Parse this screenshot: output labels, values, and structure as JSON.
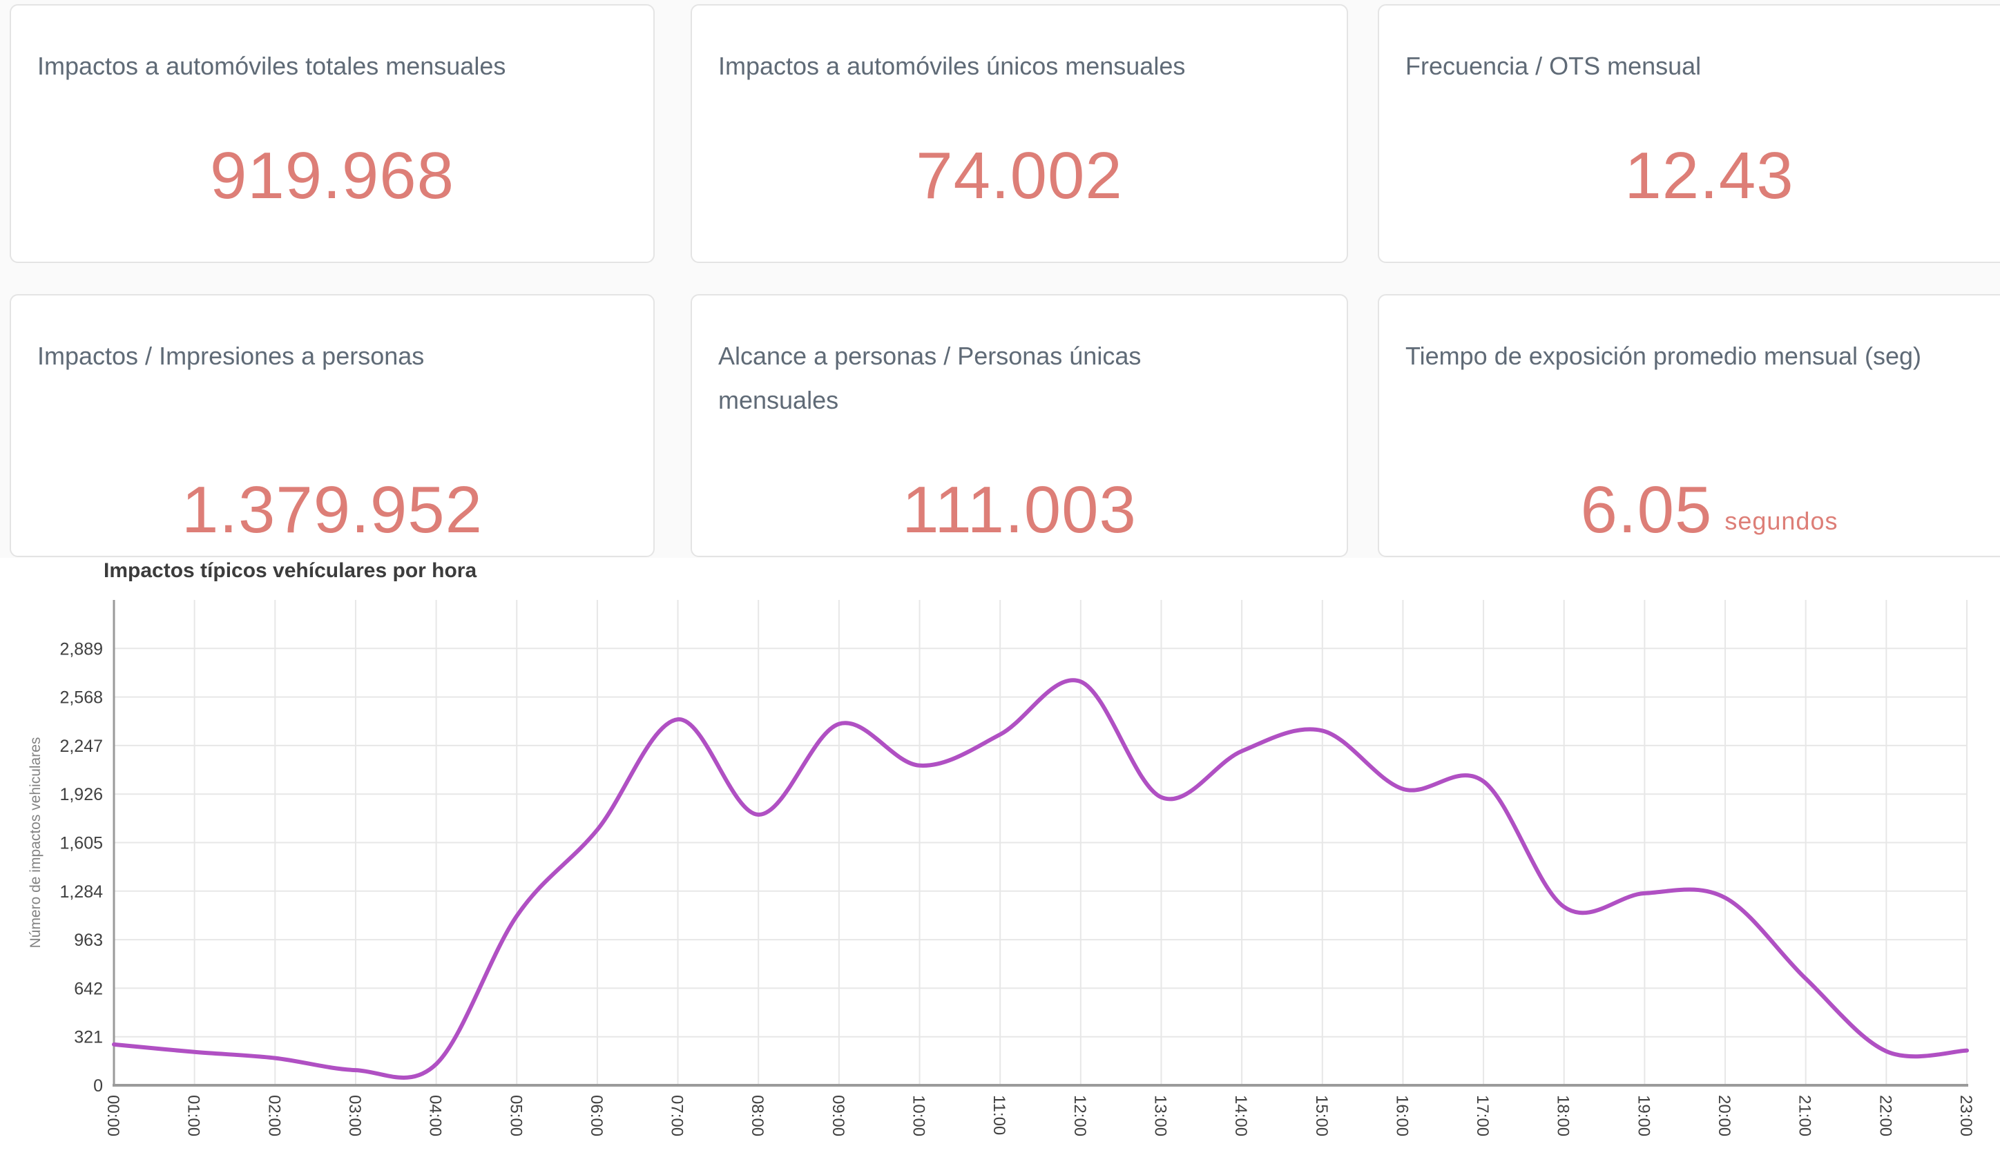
{
  "cards": [
    {
      "title": "Impactos a automóviles totales mensuales",
      "value": "919.968"
    },
    {
      "title": "Impactos a automóviles únicos mensuales",
      "value": "74.002"
    },
    {
      "title": "Frecuencia / OTS mensual",
      "value": "12.43"
    },
    {
      "title": "Impactos / Impresiones a personas",
      "value": "1.379.952"
    },
    {
      "title": "Alcance a personas / Personas únicas mensuales",
      "value": "111.003"
    },
    {
      "title": "Tiempo de exposición promedio mensual (seg)",
      "value": "6.05",
      "suffix": "segundos"
    }
  ],
  "colors": {
    "kpi_value": "#dd7e77",
    "card_title": "#5f6a76",
    "card_border": "#e4e4e4",
    "page_background": "#fafafa",
    "chart_title": "#3c3c3c",
    "gridline": "#e7e7e7",
    "axis_line": "#9a9a9a",
    "tick_label": "#404040",
    "axis_title": "#828282"
  },
  "chart_data": {
    "type": "line",
    "title": "Impactos típicos vehículares por hora",
    "xlabel": "",
    "ylabel": "Número de impactos vehiculares",
    "x": [
      "00:00",
      "01:00",
      "02:00",
      "03:00",
      "04:00",
      "05:00",
      "06:00",
      "07:00",
      "08:00",
      "09:00",
      "10:00",
      "11:00",
      "12:00",
      "13:00",
      "14:00",
      "15:00",
      "16:00",
      "17:00",
      "18:00",
      "19:00",
      "20:00",
      "21:00",
      "22:00",
      "23:00"
    ],
    "values": [
      270,
      220,
      180,
      100,
      140,
      1120,
      1690,
      2420,
      1790,
      2390,
      2115,
      2320,
      2670,
      1905,
      2210,
      2345,
      1960,
      2010,
      1180,
      1270,
      1240,
      705,
      225,
      230
    ],
    "y_ticks": [
      0,
      321,
      642,
      963,
      1284,
      1605,
      1926,
      2247,
      2568,
      2889
    ],
    "y_tick_labels": [
      "0",
      "321",
      "642",
      "963",
      "1,284",
      "1,605",
      "1,926",
      "2,247",
      "2,568",
      "2,889"
    ],
    "ylim": [
      0,
      3210
    ],
    "grid": true,
    "legend": "none",
    "line_color": "#b050c3",
    "curve": "smooth",
    "x_label_rotation": 90
  }
}
